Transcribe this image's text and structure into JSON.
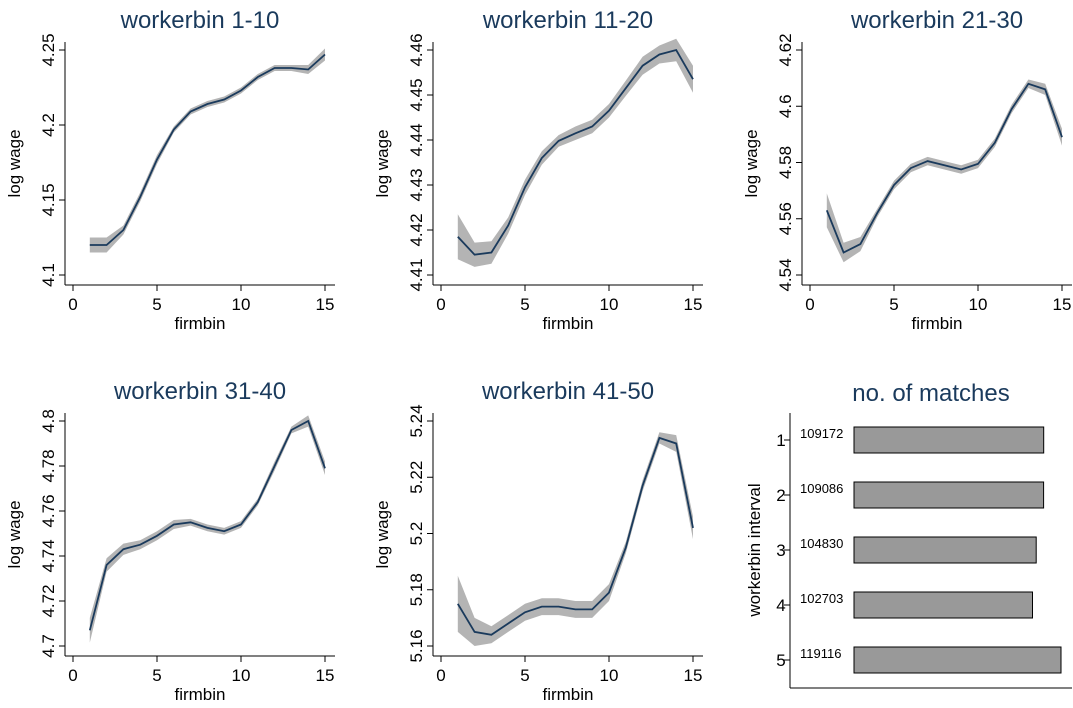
{
  "colors": {
    "line": "#1a3a5c",
    "band": "#b4b4b4",
    "bar": "#999999",
    "title": "#1a3a5c"
  },
  "chart_data": [
    {
      "type": "line",
      "title": "workerbin 1-10",
      "xlabel": "firmbin",
      "ylabel": "log wage",
      "xlim": [
        0,
        15
      ],
      "ylim": [
        4.1,
        4.25
      ],
      "xticks": [
        0,
        5,
        10,
        15
      ],
      "yticks": [
        4.1,
        4.15,
        4.2,
        4.25
      ],
      "yticklabels": [
        "4.1",
        "4.15",
        "4.2",
        "4.25"
      ],
      "x": [
        1,
        2,
        3,
        4,
        5,
        6,
        7,
        8,
        9,
        10,
        11,
        12,
        13,
        14,
        15
      ],
      "y": [
        4.12,
        4.12,
        4.13,
        4.152,
        4.177,
        4.197,
        4.209,
        4.214,
        4.217,
        4.223,
        4.232,
        4.238,
        4.238,
        4.237,
        4.247
      ],
      "ci_low": [
        4.115,
        4.115,
        4.127,
        4.149,
        4.174,
        4.195,
        4.207,
        4.212,
        4.215,
        4.221,
        4.23,
        4.236,
        4.236,
        4.234,
        4.243
      ],
      "ci_high": [
        4.125,
        4.125,
        4.133,
        4.155,
        4.18,
        4.199,
        4.211,
        4.216,
        4.219,
        4.225,
        4.234,
        4.24,
        4.24,
        4.24,
        4.251
      ]
    },
    {
      "type": "line",
      "title": "workerbin 11-20",
      "xlabel": "firmbin",
      "ylabel": "log wage",
      "xlim": [
        0,
        15
      ],
      "ylim": [
        4.41,
        4.46
      ],
      "xticks": [
        0,
        5,
        10,
        15
      ],
      "yticks": [
        4.41,
        4.42,
        4.43,
        4.44,
        4.45,
        4.46
      ],
      "yticklabels": [
        "4.41",
        "4.42",
        "4.43",
        "4.44",
        "4.45",
        "4.46"
      ],
      "x": [
        1,
        2,
        3,
        4,
        5,
        6,
        7,
        8,
        9,
        10,
        11,
        12,
        13,
        14,
        15
      ],
      "y": [
        4.4185,
        4.4145,
        4.415,
        4.421,
        4.4295,
        4.436,
        4.4398,
        4.4415,
        4.443,
        4.4465,
        4.4515,
        4.4565,
        4.459,
        4.46,
        4.4535
      ],
      "ci_low": [
        4.4135,
        4.4118,
        4.4125,
        4.4192,
        4.4278,
        4.4345,
        4.4385,
        4.44,
        4.4415,
        4.445,
        4.4498,
        4.4545,
        4.457,
        4.4575,
        4.4505
      ],
      "ci_high": [
        4.4235,
        4.4172,
        4.4175,
        4.4228,
        4.4312,
        4.4375,
        4.4411,
        4.443,
        4.4445,
        4.448,
        4.4532,
        4.4585,
        4.461,
        4.4625,
        4.4565
      ]
    },
    {
      "type": "line",
      "title": "workerbin 21-30",
      "xlabel": "firmbin",
      "ylabel": "log wage",
      "xlim": [
        0,
        15
      ],
      "ylim": [
        4.54,
        4.62
      ],
      "xticks": [
        0,
        5,
        10,
        15
      ],
      "yticks": [
        4.54,
        4.56,
        4.58,
        4.6,
        4.62
      ],
      "yticklabels": [
        "4.54",
        "4.56",
        "4.58",
        "4.6",
        "4.62"
      ],
      "x": [
        1,
        2,
        3,
        4,
        5,
        6,
        7,
        8,
        9,
        10,
        11,
        12,
        13,
        14,
        15
      ],
      "y": [
        4.563,
        4.548,
        4.551,
        4.562,
        4.572,
        4.578,
        4.5805,
        4.579,
        4.5775,
        4.5795,
        4.587,
        4.599,
        4.608,
        4.606,
        4.589
      ],
      "ci_low": [
        4.557,
        4.5445,
        4.5485,
        4.5605,
        4.5705,
        4.5765,
        4.579,
        4.5775,
        4.576,
        4.578,
        4.5855,
        4.5975,
        4.6065,
        4.604,
        4.586
      ],
      "ci_high": [
        4.569,
        4.5515,
        4.5535,
        4.5635,
        4.5735,
        4.5795,
        4.582,
        4.5805,
        4.579,
        4.581,
        4.5885,
        4.6005,
        4.6095,
        4.608,
        4.592
      ]
    },
    {
      "type": "line",
      "title": "workerbin 31-40",
      "xlabel": "firmbin",
      "ylabel": "log wage",
      "xlim": [
        0,
        15
      ],
      "ylim": [
        4.7,
        4.8
      ],
      "xticks": [
        0,
        5,
        10,
        15
      ],
      "yticks": [
        4.7,
        4.72,
        4.74,
        4.76,
        4.78,
        4.8
      ],
      "yticklabels": [
        "4.7",
        "4.72",
        "4.74",
        "4.76",
        "4.78",
        "4.8"
      ],
      "x": [
        1,
        2,
        3,
        4,
        5,
        6,
        7,
        8,
        9,
        10,
        11,
        12,
        13,
        14,
        15
      ],
      "y": [
        4.707,
        4.736,
        4.743,
        4.745,
        4.749,
        4.754,
        4.755,
        4.7525,
        4.751,
        4.754,
        4.764,
        4.78,
        4.796,
        4.8,
        4.779
      ],
      "ci_low": [
        4.7015,
        4.733,
        4.7405,
        4.743,
        4.747,
        4.752,
        4.7535,
        4.751,
        4.7495,
        4.7525,
        4.7625,
        4.778,
        4.7945,
        4.7975,
        4.776
      ],
      "ci_high": [
        4.7125,
        4.739,
        4.7455,
        4.747,
        4.751,
        4.756,
        4.7565,
        4.754,
        4.7525,
        4.7555,
        4.7655,
        4.782,
        4.7975,
        4.8025,
        4.782
      ]
    },
    {
      "type": "line",
      "title": "workerbin 41-50",
      "xlabel": "firmbin",
      "ylabel": "log wage",
      "xlim": [
        0,
        15
      ],
      "ylim": [
        5.16,
        5.24
      ],
      "xticks": [
        0,
        5,
        10,
        15
      ],
      "yticks": [
        5.16,
        5.18,
        5.2,
        5.22,
        5.24
      ],
      "yticklabels": [
        "5.16",
        "5.18",
        "5.2",
        "5.22",
        "5.24"
      ],
      "x": [
        1,
        2,
        3,
        4,
        5,
        6,
        7,
        8,
        9,
        10,
        11,
        12,
        13,
        14,
        15
      ],
      "y": [
        5.175,
        5.165,
        5.164,
        5.168,
        5.172,
        5.174,
        5.174,
        5.173,
        5.173,
        5.179,
        5.195,
        5.217,
        5.234,
        5.232,
        5.202
      ],
      "ci_low": [
        5.165,
        5.16,
        5.161,
        5.165,
        5.169,
        5.171,
        5.171,
        5.17,
        5.17,
        5.176,
        5.193,
        5.215,
        5.232,
        5.229,
        5.198
      ],
      "ci_high": [
        5.185,
        5.17,
        5.167,
        5.171,
        5.175,
        5.177,
        5.177,
        5.176,
        5.176,
        5.182,
        5.197,
        5.219,
        5.236,
        5.235,
        5.206
      ]
    },
    {
      "type": "bar",
      "orientation": "horizontal",
      "title": "no. of matches",
      "xlabel": "",
      "ylabel": "workerbin interval",
      "categories": [
        "1",
        "2",
        "3",
        "4",
        "5"
      ],
      "values": [
        109172,
        109086,
        104830,
        102703,
        119116
      ],
      "value_labels": [
        "109172",
        "109086",
        "104830",
        "102703",
        "119116"
      ],
      "xlim": [
        0,
        119116
      ]
    }
  ]
}
